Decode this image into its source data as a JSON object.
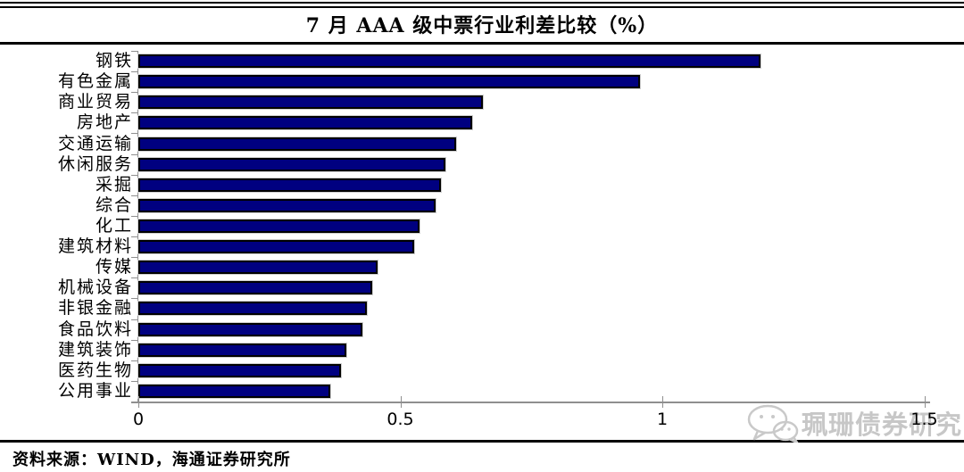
{
  "title": "7 月 AAA 级中票行业利差比较（%）",
  "chart_data": {
    "type": "bar",
    "orientation": "horizontal",
    "title": "7 月 AAA 级中票行业利差比较（%）",
    "categories": [
      "钢铁",
      "有色金属",
      "商业贸易",
      "房地产",
      "交通运输",
      "休闲服务",
      "采掘",
      "综合",
      "化工",
      "建筑材料",
      "传媒",
      "机械设备",
      "非银金融",
      "食品饮料",
      "建筑装饰",
      "医药生物",
      "公用事业"
    ],
    "values": [
      1.18,
      0.95,
      0.65,
      0.63,
      0.6,
      0.58,
      0.57,
      0.56,
      0.53,
      0.52,
      0.45,
      0.44,
      0.43,
      0.42,
      0.39,
      0.38,
      0.36
    ],
    "xlabel": "",
    "ylabel": "",
    "xlim": [
      0,
      1.5
    ],
    "x_tick_labels": [
      "0",
      "0.5",
      "1",
      "1.5"
    ],
    "x_tick_values": [
      0,
      0.5,
      1,
      1.5
    ],
    "grid": false,
    "legend_position": "none",
    "bar_color": "#000080",
    "bar_border_color": "#000000",
    "axis_color": "#8f8f8f"
  },
  "footer": {
    "source_text": "资料来源：WIND，海通证券研究所"
  },
  "watermark": {
    "icon": "wechat-icon",
    "text": "珮珊债券研究",
    "color": "#c7c7c7"
  }
}
